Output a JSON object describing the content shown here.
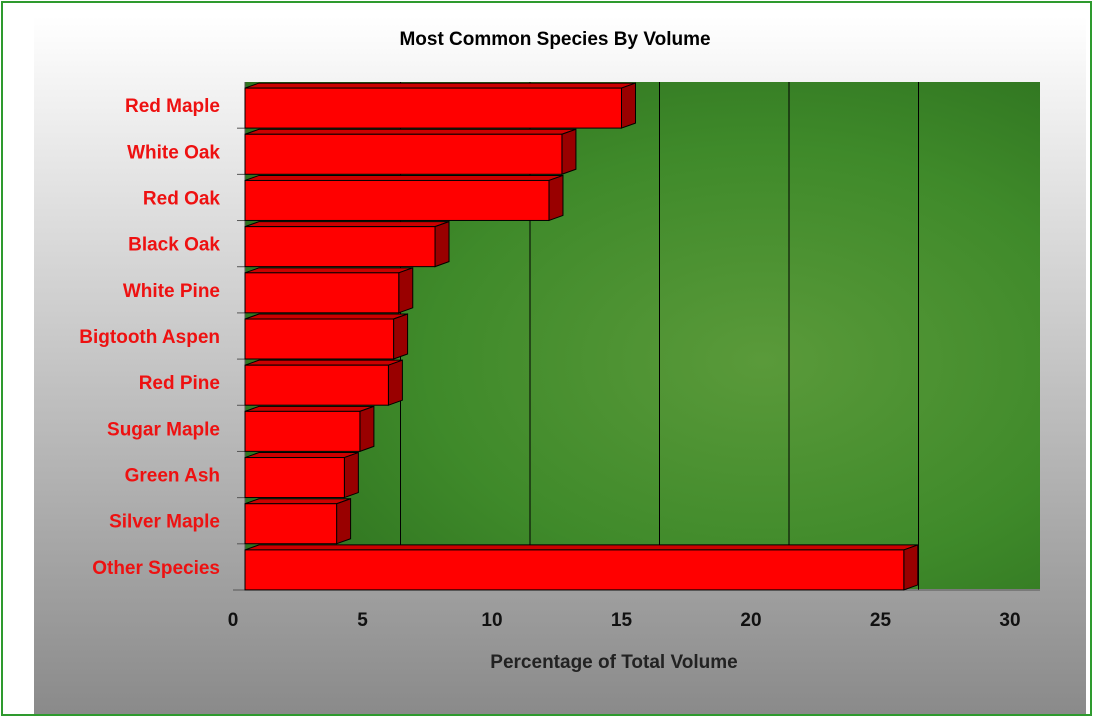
{
  "chart_data": {
    "type": "bar",
    "orientation": "horizontal",
    "title": "Most Common Species By Volume",
    "x_label": "Percentage of Total Volume",
    "categories": [
      "Red Maple",
      "White Oak",
      "Red Oak",
      "Black Oak",
      "White Pine",
      "Bigtooth Aspen",
      "Red Pine",
      "Sugar Maple",
      "Green Ash",
      "Silver Maple",
      "Other Species"
    ],
    "values": [
      15.0,
      12.7,
      12.2,
      7.8,
      6.4,
      6.2,
      6.0,
      4.9,
      4.3,
      4.0,
      25.9
    ],
    "color": "#ff0000",
    "xlim": [
      0,
      30
    ],
    "xticks": [
      0,
      5,
      10,
      15,
      20,
      25,
      30
    ],
    "grid": true
  }
}
